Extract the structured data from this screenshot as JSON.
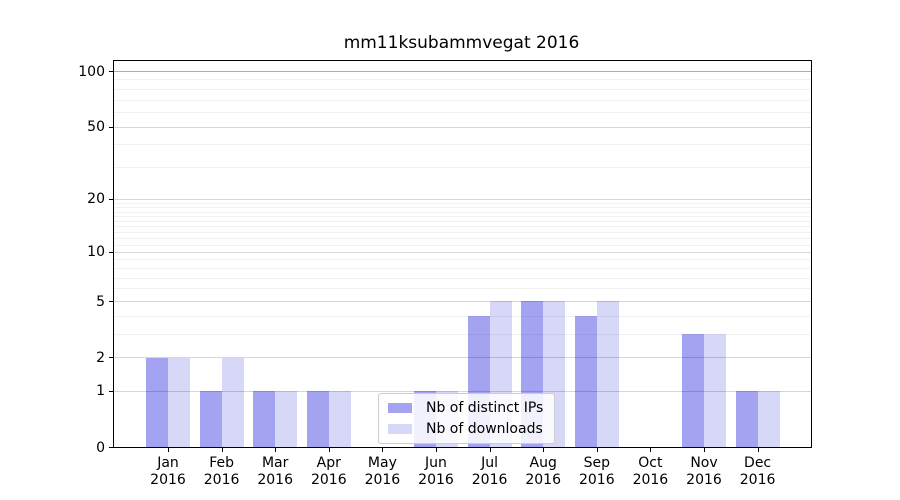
{
  "chart_data": {
    "type": "bar",
    "title": "mm11ksubammvegat 2016",
    "categories": [
      {
        "month": "Jan",
        "year": "2016"
      },
      {
        "month": "Feb",
        "year": "2016"
      },
      {
        "month": "Mar",
        "year": "2016"
      },
      {
        "month": "Apr",
        "year": "2016"
      },
      {
        "month": "May",
        "year": "2016"
      },
      {
        "month": "Jun",
        "year": "2016"
      },
      {
        "month": "Jul",
        "year": "2016"
      },
      {
        "month": "Aug",
        "year": "2016"
      },
      {
        "month": "Sep",
        "year": "2016"
      },
      {
        "month": "Oct",
        "year": "2016"
      },
      {
        "month": "Nov",
        "year": "2016"
      },
      {
        "month": "Dec",
        "year": "2016"
      }
    ],
    "series": [
      {
        "name": "Nb of distinct IPs",
        "color": "#a3a3f1",
        "values": [
          2,
          1,
          1,
          1,
          0,
          1,
          4,
          5,
          4,
          0,
          3,
          1
        ]
      },
      {
        "name": "Nb of downloads",
        "color": "#d7d7f8",
        "values": [
          2,
          2,
          1,
          1,
          0,
          1,
          5,
          5,
          5,
          0,
          3,
          1
        ]
      }
    ],
    "y_axis": {
      "scale": "log(1+x)",
      "major_ticks": [
        0,
        1,
        2,
        5,
        10,
        20,
        50,
        100
      ],
      "minor_gridlines": [
        3,
        4,
        6,
        7,
        8,
        9,
        11,
        12,
        13,
        14,
        15,
        16,
        17,
        18,
        19,
        30,
        40,
        60,
        70,
        80,
        90
      ],
      "max_reference": 100
    },
    "grid": true,
    "legend_position": "lower center",
    "ylabel": "",
    "xlabel": ""
  }
}
